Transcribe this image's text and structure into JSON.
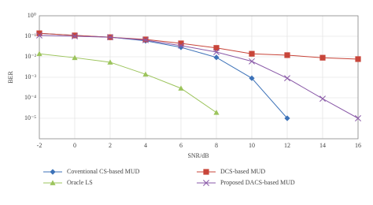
{
  "chart_data": {
    "type": "line",
    "x_label": "SNR/dB",
    "y_label": "BER",
    "x": [
      -2,
      0,
      2,
      4,
      6,
      8,
      10,
      12,
      14,
      16
    ],
    "series": [
      {
        "name": "Coventional CS-based MUD",
        "color": "#3d72b8",
        "marker": "diamond",
        "values": [
          0.14,
          0.11,
          0.09,
          0.06,
          0.029,
          0.0093,
          0.0009,
          1e-05,
          null,
          null
        ]
      },
      {
        "name": "DCS-based MUD",
        "color": "#c8453a",
        "marker": "square",
        "values": [
          0.14,
          0.11,
          0.09,
          0.07,
          0.045,
          0.027,
          0.014,
          0.012,
          0.009,
          0.0077
        ]
      },
      {
        "name": "Oracle LS",
        "color": "#9cc45c",
        "marker": "triangle",
        "values": [
          0.014,
          0.009,
          0.0054,
          0.0014,
          0.00029,
          1.9e-05,
          null,
          null,
          null,
          null
        ]
      },
      {
        "name": "Proposed DACS-based MUD",
        "color": "#8a5aa8",
        "marker": "x",
        "values": [
          0.11,
          0.1,
          0.09,
          0.065,
          0.035,
          0.017,
          0.006,
          0.0009,
          9e-05,
          1e-05
        ]
      }
    ],
    "xlim": [
      -2,
      16
    ],
    "xticks": [
      -2,
      0,
      2,
      4,
      6,
      8,
      10,
      12,
      14,
      16
    ],
    "ylim": [
      1e-06,
      1
    ],
    "ylog": true,
    "yticks": [
      {
        "value": 1,
        "label": "10⁰"
      },
      {
        "value": 0.1,
        "label": "10⁻¹"
      },
      {
        "value": 0.01,
        "label": "10⁻²"
      },
      {
        "value": 0.001,
        "label": "10⁻³"
      },
      {
        "value": 0.0001,
        "label": "10⁻⁴"
      },
      {
        "value": 1e-05,
        "label": "10⁻⁵"
      }
    ],
    "grid": true
  }
}
